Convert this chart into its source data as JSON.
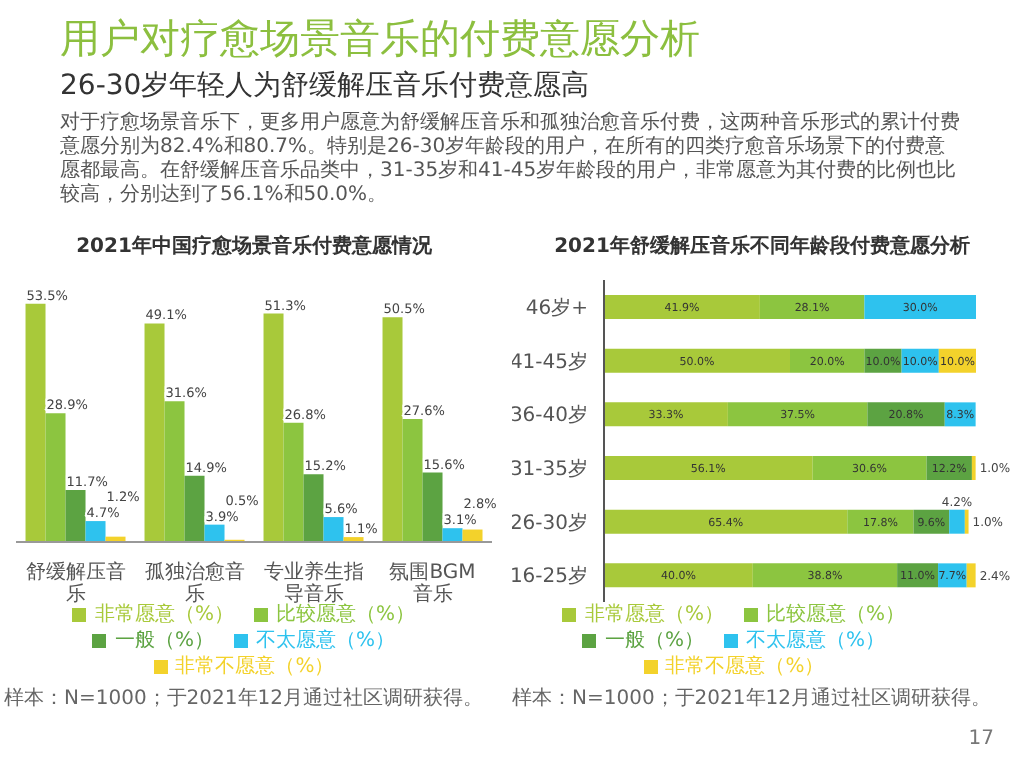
{
  "chart_data": [
    {
      "type": "other",
      "title": "用户对疗愈场景音乐的付费意愿分析",
      "subtitle": "26-30岁年轻人为舒缓解压音乐付费意愿高",
      "annotations": [
        "对于疗愈场景音乐下，更多用户愿意为舒缓解压音乐和孤独治愈音乐付费，这两种音乐形式的累计付费意愿分别为82.4%和80.7%。特别是26-30岁年龄段的用户，在所有的四类疗愈音乐场景下的付费意愿都最高。在舒缓解压音乐品类中，31-35岁和41-45岁年龄段的用户，非常愿意为其付费的比例也比较高，分别达到了56.1%和50.0%。",
        "17"
      ]
    },
    {
      "type": "bar",
      "title": "2021年中国疗愈场景音乐付费意愿情况",
      "categories": [
        "舒缓解压音乐",
        "孤独治愈音乐",
        "专业养生指导音乐",
        "氛围BGM音乐"
      ],
      "legend": "bottom",
      "annotations": [
        "样本：N=1000；于2021年12月通过社区调研获得。"
      ],
      "series": [
        {
          "name": "非常愿意（%）",
          "color": "#a8c93a",
          "values": [
            53.5,
            49.1,
            51.3,
            50.5
          ],
          "value_labels": [
            "53.5%",
            "49.1%",
            "51.3%",
            "50.5%"
          ]
        },
        {
          "name": "比较愿意（%）",
          "color": "#8cc540",
          "values": [
            28.9,
            31.6,
            26.8,
            27.6
          ],
          "value_labels": [
            "28.9%",
            "31.6%",
            "26.8%",
            "27.6%"
          ]
        },
        {
          "name": "一般（%）",
          "color": "#5ca342",
          "values": [
            11.7,
            14.9,
            15.2,
            15.6
          ],
          "value_labels": [
            "11.7%",
            "14.9%",
            "15.2%",
            "15.6%"
          ]
        },
        {
          "name": "不太愿意（%）",
          "color": "#2ec2ee",
          "values": [
            4.7,
            3.9,
            5.6,
            3.1
          ],
          "value_labels": [
            "4.7%",
            "3.9%",
            "5.6%",
            "3.1%"
          ]
        },
        {
          "name": "非常不愿意（%）",
          "color": "#f3d22b",
          "values": [
            1.2,
            0.5,
            1.1,
            2.8
          ],
          "value_labels": [
            "1.2%",
            "0.5%",
            "1.1%",
            "2.8%"
          ]
        }
      ]
    },
    {
      "type": "bar",
      "orientation": "horizontal",
      "stacked": true,
      "title": "2021年舒缓解压音乐不同年龄段付费意愿分析",
      "categories": [
        "46岁+",
        "41-45岁",
        "36-40岁",
        "31-35岁",
        "26-30岁",
        "16-25岁"
      ],
      "legend": "bottom",
      "annotations": [
        "样本：N=1000；于2021年12月通过社区调研获得。"
      ],
      "series": [
        {
          "name": "非常愿意（%）",
          "color": "#a8c93a",
          "values": [
            41.9,
            50.0,
            33.3,
            56.1,
            65.4,
            40.0
          ],
          "value_labels": [
            "41.9%",
            "50.0%",
            "33.3%",
            "56.1%",
            "65.4%",
            "40.0%"
          ]
        },
        {
          "name": "比较愿意（%）",
          "color": "#8cc540",
          "values": [
            28.1,
            20.0,
            37.5,
            30.6,
            17.8,
            38.8
          ],
          "value_labels": [
            "28.1%",
            "20.0%",
            "37.5%",
            "30.6%",
            "17.8%",
            "38.8%"
          ]
        },
        {
          "name": "一般（%）",
          "color": "#5ca342",
          "values": [
            null,
            10.0,
            20.8,
            12.2,
            9.6,
            11.0
          ],
          "value_labels": [
            null,
            "10.0%",
            "20.8%",
            "12.2%",
            "9.6%",
            "11.0%"
          ]
        },
        {
          "name": "不太愿意（%）",
          "color": "#2ec2ee",
          "values": [
            30.0,
            10.0,
            8.3,
            null,
            4.2,
            7.7
          ],
          "value_labels": [
            "30.0%",
            "10.0%",
            "8.3%",
            null,
            "4.2%",
            "7.7%"
          ]
        },
        {
          "name": "非常不愿意（%）",
          "color": "#f3d22b",
          "values": [
            null,
            10.0,
            null,
            1.0,
            1.0,
            2.4
          ],
          "value_labels": [
            null,
            "10.0%",
            null,
            "1.0%",
            "1.0%",
            "2.4%"
          ]
        }
      ]
    }
  ]
}
